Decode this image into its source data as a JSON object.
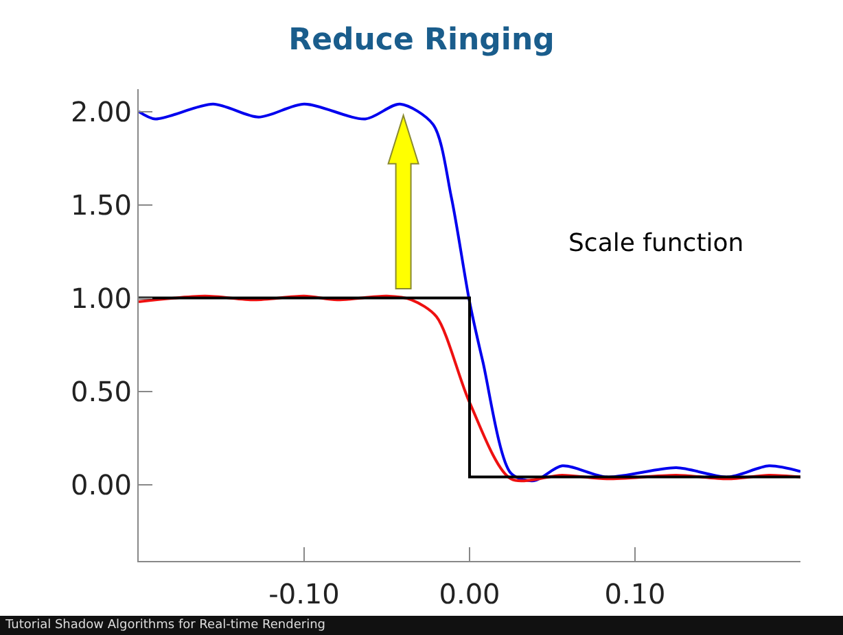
{
  "chart_data": {
    "type": "line",
    "title": "Reduce Ringing",
    "annotations": [
      "Scale function",
      "Tutorial  Shadow Algorithms for Real-time Rendering"
    ],
    "series": [
      {
        "color": "#0000ee",
        "x": [
          -0.2,
          -0.19,
          -0.155,
          -0.1275,
          -0.1,
          -0.063,
          -0.042,
          -0.022,
          -0.011,
          0,
          0.008,
          0.025,
          0.039,
          0.056,
          0.083,
          0.125,
          0.156,
          0.181,
          0.2
        ],
        "values": [
          2.0,
          1.96,
          2.04,
          1.97,
          2.04,
          1.96,
          2.04,
          1.93,
          1.54,
          0.98,
          0.66,
          0.06,
          0.02,
          0.1,
          0.04,
          0.09,
          0.04,
          0.1,
          0.07
        ]
      },
      {
        "color": "#ee1111",
        "x": [
          -0.2,
          -0.16,
          -0.13,
          -0.1,
          -0.08,
          -0.05,
          -0.035,
          -0.02,
          0,
          0.025,
          0.056,
          0.083,
          0.125,
          0.156,
          0.181,
          0.2
        ],
        "values": [
          0.98,
          1.01,
          0.99,
          1.01,
          0.99,
          1.01,
          0.99,
          0.9,
          0.44,
          0.03,
          0.05,
          0.03,
          0.05,
          0.03,
          0.05,
          0.04
        ]
      },
      {
        "color": "#000000",
        "x": [
          -0.2,
          0,
          0,
          0.2
        ],
        "values": [
          1,
          1,
          0.04,
          0.04
        ]
      }
    ],
    "xlim": [
      -0.2,
      0.2
    ],
    "xticks": [
      {
        "value": -0.1,
        "label": "-0.10"
      },
      {
        "value": 0,
        "label": "0.00"
      },
      {
        "value": 0.1,
        "label": "0.10"
      }
    ],
    "ylim": [
      -0.41,
      2.12
    ],
    "yticks": [
      {
        "value": 0,
        "label": "0.00"
      },
      {
        "value": 0.5,
        "label": "0.50"
      },
      {
        "value": 1,
        "label": "1.00"
      },
      {
        "value": 1.5,
        "label": "1.50"
      },
      {
        "value": 2,
        "label": "2.00"
      }
    ],
    "grid": false,
    "marker": "none",
    "line_style": "solid"
  }
}
